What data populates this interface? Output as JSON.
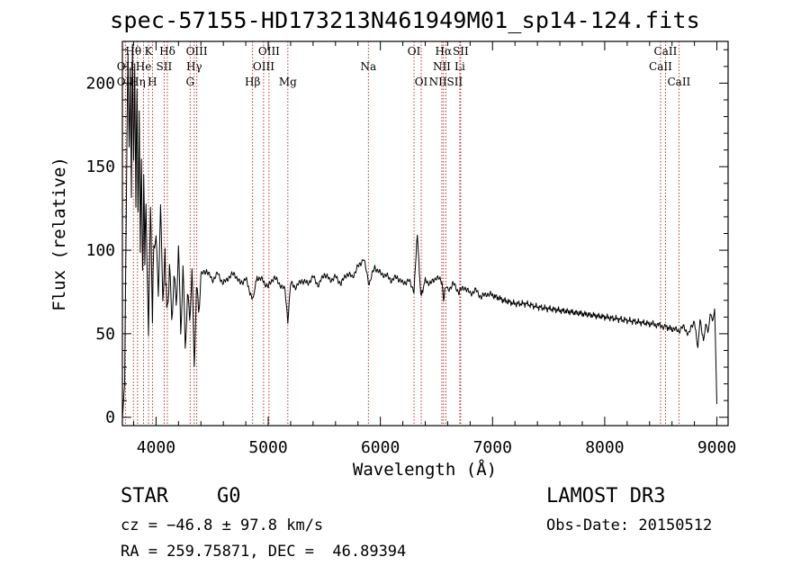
{
  "chart_data": {
    "type": "line",
    "title": "spec-57155-HD173213N461949M01_sp14-124.fits",
    "xlabel": "Wavelength (Å)",
    "ylabel": "Flux (relative)",
    "xlim": [
      3700,
      9100
    ],
    "ylim": [
      -5,
      225
    ],
    "x_ticks": [
      4000,
      5000,
      6000,
      7000,
      8000,
      9000
    ],
    "y_ticks": [
      0,
      50,
      100,
      150,
      200
    ],
    "series": [
      {
        "name": "spectrum",
        "x": [
          3700,
          3720,
          3740,
          3750,
          3760,
          3770,
          3780,
          3790,
          3800,
          3810,
          3820,
          3830,
          3840,
          3850,
          3860,
          3870,
          3880,
          3890,
          3900,
          3910,
          3920,
          3933,
          3950,
          3968,
          3980,
          4000,
          4020,
          4040,
          4060,
          4080,
          4101,
          4120,
          4140,
          4160,
          4180,
          4200,
          4220,
          4240,
          4260,
          4280,
          4300,
          4320,
          4340,
          4360,
          4380,
          4400,
          4450,
          4500,
          4550,
          4600,
          4650,
          4700,
          4750,
          4800,
          4861,
          4900,
          4950,
          5000,
          5050,
          5100,
          5150,
          5175,
          5200,
          5250,
          5300,
          5350,
          5400,
          5450,
          5500,
          5550,
          5600,
          5650,
          5700,
          5750,
          5800,
          5850,
          5900,
          5950,
          6000,
          6050,
          6100,
          6150,
          6200,
          6250,
          6300,
          6330,
          6360,
          6400,
          6450,
          6500,
          6550,
          6563,
          6580,
          6600,
          6650,
          6700,
          6750,
          6800,
          6850,
          6900,
          6950,
          7000,
          7100,
          7200,
          7300,
          7400,
          7500,
          7600,
          7700,
          7800,
          7900,
          8000,
          8100,
          8200,
          8300,
          8400,
          8498,
          8542,
          8600,
          8662,
          8700,
          8750,
          8800,
          8830,
          8850,
          8880,
          8900,
          8920,
          8940,
          8960,
          8980,
          9000
        ],
        "values": [
          3,
          15,
          170,
          215,
          160,
          205,
          140,
          222,
          150,
          210,
          130,
          200,
          115,
          185,
          100,
          160,
          80,
          145,
          95,
          130,
          85,
          55,
          125,
          60,
          110,
          105,
          75,
          120,
          70,
          95,
          60,
          90,
          65,
          85,
          72,
          100,
          50,
          85,
          40,
          70,
          60,
          90,
          35,
          80,
          65,
          85,
          88,
          82,
          86,
          80,
          84,
          86,
          80,
          83,
          70,
          84,
          82,
          78,
          84,
          80,
          76,
          58,
          80,
          78,
          82,
          80,
          84,
          79,
          86,
          82,
          84,
          80,
          86,
          84,
          90,
          95,
          80,
          90,
          86,
          85,
          82,
          84,
          80,
          82,
          76,
          110,
          72,
          82,
          80,
          84,
          81,
          70,
          78,
          76,
          80,
          75,
          78,
          74,
          76,
          72,
          74,
          73,
          70,
          68,
          68,
          66,
          65,
          64,
          63,
          62,
          61,
          60,
          59,
          58,
          57,
          56,
          55,
          54,
          53,
          52,
          54,
          50,
          58,
          40,
          60,
          45,
          55,
          50,
          62,
          58,
          66,
          8
        ]
      }
    ],
    "spectral_lines": [
      {
        "name": "Hθ",
        "wavelength": 3798,
        "row": 1
      },
      {
        "name": "K",
        "wavelength": 3933,
        "row": 1
      },
      {
        "name": "Hδ",
        "wavelength": 4101,
        "row": 1
      },
      {
        "name": "OIII",
        "wavelength": 4363,
        "row": 1
      },
      {
        "name": "OIII",
        "wavelength": 5007,
        "row": 1
      },
      {
        "name": "OI",
        "wavelength": 6300,
        "row": 1
      },
      {
        "name": "Hα",
        "wavelength": 6563,
        "row": 1
      },
      {
        "name": "SII",
        "wavelength": 6716,
        "row": 1
      },
      {
        "name": "CaII",
        "wavelength": 8542,
        "row": 1
      },
      {
        "name": "OII",
        "wavelength": 3727,
        "row": 2
      },
      {
        "name": "He",
        "wavelength": 3889,
        "row": 2
      },
      {
        "name": "SII",
        "wavelength": 4072,
        "row": 2
      },
      {
        "name": "Hγ",
        "wavelength": 4340,
        "row": 2
      },
      {
        "name": "OIII",
        "wavelength": 4959,
        "row": 2
      },
      {
        "name": "Na",
        "wavelength": 5893,
        "row": 2
      },
      {
        "name": "NII",
        "wavelength": 6548,
        "row": 2
      },
      {
        "name": "Li",
        "wavelength": 6708,
        "row": 2
      },
      {
        "name": "CaII",
        "wavelength": 8498,
        "row": 2
      },
      {
        "name": "OII",
        "wavelength": 3727,
        "row": 3
      },
      {
        "name": "Hη",
        "wavelength": 3835,
        "row": 3
      },
      {
        "name": "H",
        "wavelength": 3968,
        "row": 3
      },
      {
        "name": "G",
        "wavelength": 4304,
        "row": 3
      },
      {
        "name": "Hβ",
        "wavelength": 4861,
        "row": 3
      },
      {
        "name": "Mg",
        "wavelength": 5175,
        "row": 3
      },
      {
        "name": "OI",
        "wavelength": 6364,
        "row": 3
      },
      {
        "name": "NIISII",
        "wavelength": 6584,
        "row": 3
      },
      {
        "name": "CaII",
        "wavelength": 8662,
        "row": 3
      }
    ]
  },
  "info": {
    "class": "STAR",
    "subclass": "G0",
    "survey": "LAMOST DR3",
    "cz": "cz = −46.8 ± 97.8 km/s",
    "obs_date": "Obs-Date: 20150512",
    "coords": "RA = 259.75871, DEC =  46.89394"
  },
  "colors": {
    "line_marker": "#b02020",
    "spectrum": "#000000",
    "axes": "#000000"
  }
}
